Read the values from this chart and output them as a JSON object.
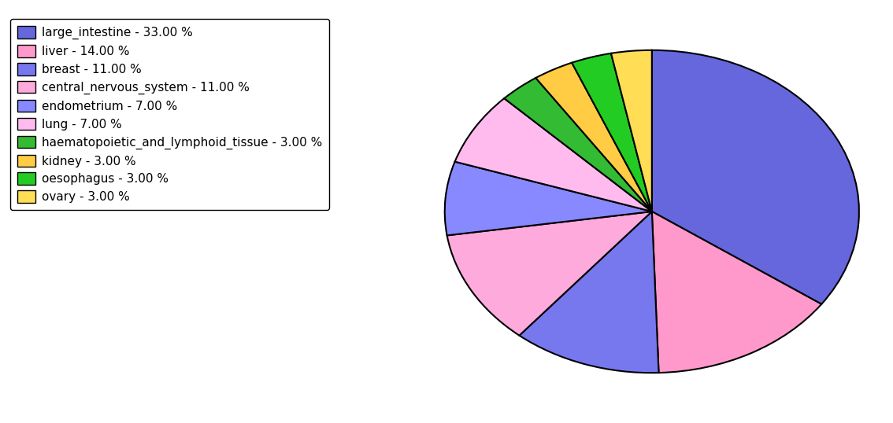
{
  "labels": [
    "large_intestine",
    "liver",
    "breast",
    "central_nervous_system",
    "endometrium",
    "lung",
    "haematopoietic_and_lymphoid_tissue",
    "kidney",
    "oesophagus",
    "ovary"
  ],
  "values": [
    33,
    14,
    11,
    11,
    7,
    7,
    3,
    3,
    3,
    3
  ],
  "wedge_colors": [
    "#6666dd",
    "#ff99cc",
    "#7777ee",
    "#ffaadd",
    "#8888ff",
    "#ffbbee",
    "#33bb33",
    "#ffcc44",
    "#22cc22",
    "#ffdd55"
  ],
  "legend_labels": [
    "large_intestine - 33.00 %",
    "liver - 14.00 %",
    "breast - 11.00 %",
    "central_nervous_system - 11.00 %",
    "endometrium - 7.00 %",
    "lung - 7.00 %",
    "haematopoietic_and_lymphoid_tissue - 3.00 %",
    "kidney - 3.00 %",
    "oesophagus - 3.00 %",
    "ovary - 3.00 %"
  ],
  "fig_width": 11.34,
  "fig_height": 5.38,
  "startangle": 90,
  "background_color": "#ffffff"
}
